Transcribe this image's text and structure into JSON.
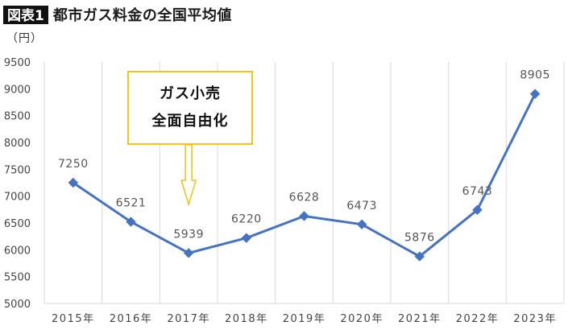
{
  "header": {
    "badge": "図表1",
    "title": "都市ガス料金の全国平均値"
  },
  "unit_label": "（円）",
  "callout": {
    "line1": "ガス小売",
    "line2": "全面自由化",
    "border_color": "#f2c418"
  },
  "chart_data": {
    "type": "line",
    "title": "都市ガス料金の全国平均値",
    "xlabel": "",
    "ylabel": "（円）",
    "categories": [
      "2015年",
      "2016年",
      "2017年",
      "2018年",
      "2019年",
      "2020年",
      "2021年",
      "2022年",
      "2023年"
    ],
    "values": [
      7250,
      6521,
      5939,
      6220,
      6628,
      6473,
      5876,
      6743,
      8905
    ],
    "data_labels": [
      "7250",
      "6521",
      "5939",
      "6220",
      "6628",
      "6473",
      "5876",
      "6743",
      "8905"
    ],
    "ylim": [
      5000,
      9500
    ],
    "y_ticks": [
      5000,
      5500,
      6000,
      6500,
      7000,
      7500,
      8000,
      8500,
      9000,
      9500
    ],
    "y_tick_labels": [
      "5000",
      "5500",
      "6000",
      "6500",
      "7000",
      "7500",
      "8000",
      "8500",
      "9000",
      "9500"
    ],
    "grid": "vertical",
    "line_color": "#4472c4",
    "marker": "diamond"
  }
}
